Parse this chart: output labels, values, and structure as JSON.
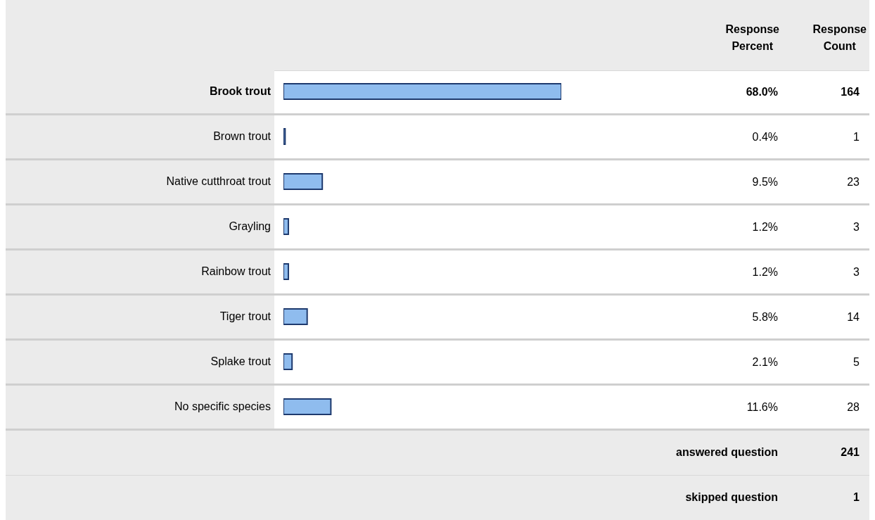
{
  "chart_data": {
    "type": "bar",
    "orientation": "horizontal",
    "categories": [
      "Brook trout",
      "Brown trout",
      "Native cutthroat trout",
      "Grayling",
      "Rainbow trout",
      "Tiger trout",
      "Splake trout",
      "No specific species"
    ],
    "values": [
      68.0,
      0.4,
      9.5,
      1.2,
      1.2,
      5.8,
      2.1,
      11.6
    ],
    "value_labels": [
      "68.0%",
      "0.4%",
      "9.5%",
      "1.2%",
      "1.2%",
      "5.8%",
      "2.1%",
      "11.6%"
    ],
    "color": "#8fbcee",
    "tick_labels": "y",
    "annotations": [
      "Response Percent",
      "Response Count",
      "164",
      "1",
      "23",
      "3",
      "3",
      "14",
      "5",
      "28",
      "answered question",
      "241",
      "skipped question",
      "1"
    ]
  }
}
